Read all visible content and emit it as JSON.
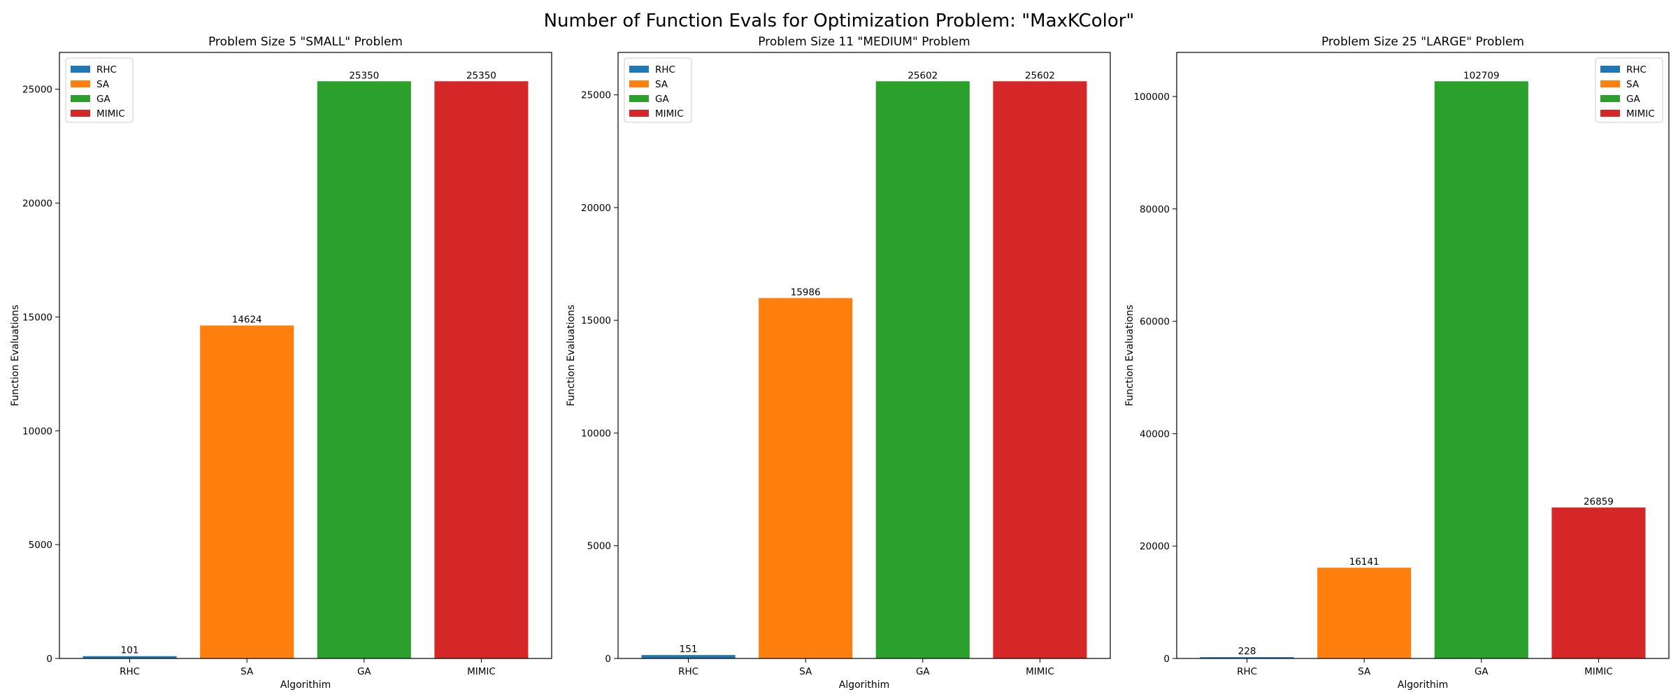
{
  "figure": {
    "title": "Number of Function Evals for Optimization Problem: \"MaxKColor\""
  },
  "colors": {
    "RHC": "#1f77b4",
    "SA": "#ff7f0e",
    "GA": "#2ca02c",
    "MIMIC": "#d62728"
  },
  "chart_data": [
    {
      "type": "bar",
      "title": "Problem Size 5 \"SMALL\" Problem",
      "xlabel": "Algorithim",
      "ylabel": "Function Evaluations",
      "categories": [
        "RHC",
        "SA",
        "GA",
        "MIMIC"
      ],
      "values": [
        101,
        14624,
        25350,
        25350
      ],
      "ylim": [
        0,
        26617
      ],
      "yticks": [
        0,
        5000,
        10000,
        15000,
        20000,
        25000
      ],
      "legend": [
        "RHC",
        "SA",
        "GA",
        "MIMIC"
      ],
      "legend_position": "top-left",
      "grid": false
    },
    {
      "type": "bar",
      "title": "Problem Size 11 \"MEDIUM\" Problem",
      "xlabel": "Algorithim",
      "ylabel": "Function Evaluations",
      "categories": [
        "RHC",
        "SA",
        "GA",
        "MIMIC"
      ],
      "values": [
        151,
        15986,
        25602,
        25602
      ],
      "ylim": [
        0,
        26882
      ],
      "yticks": [
        0,
        5000,
        10000,
        15000,
        20000,
        25000
      ],
      "legend": [
        "RHC",
        "SA",
        "GA",
        "MIMIC"
      ],
      "legend_position": "top-left",
      "grid": false
    },
    {
      "type": "bar",
      "title": "Problem Size 25 \"LARGE\" Problem",
      "xlabel": "Algorithim",
      "ylabel": "Function Evaluations",
      "categories": [
        "RHC",
        "SA",
        "GA",
        "MIMIC"
      ],
      "values": [
        228,
        16141,
        102709,
        26859
      ],
      "ylim": [
        0,
        107844
      ],
      "yticks": [
        0,
        20000,
        40000,
        60000,
        80000,
        100000
      ],
      "legend": [
        "RHC",
        "SA",
        "GA",
        "MIMIC"
      ],
      "legend_position": "top-right",
      "grid": false
    }
  ]
}
